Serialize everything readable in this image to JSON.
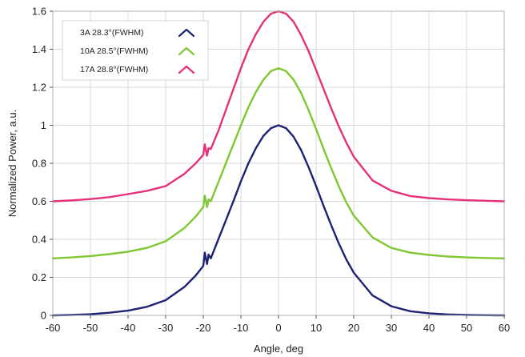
{
  "chart_data": {
    "type": "line",
    "xlabel": "Angle, deg",
    "ylabel": "Normalized Power, a.u.",
    "xlim": [
      -60,
      60
    ],
    "ylim": [
      0,
      1.6
    ],
    "x_ticks": [
      -60,
      -50,
      -40,
      -30,
      -20,
      -10,
      0,
      10,
      20,
      30,
      40,
      50,
      60
    ],
    "y_ticks": [
      0,
      0.2,
      0.4,
      0.6,
      0.8,
      1,
      1.2,
      1.4,
      1.6
    ],
    "x_tick_labels": [
      "-60",
      "-50",
      "-40",
      "-30",
      "-20",
      "-10",
      "0",
      "10",
      "20",
      "30",
      "40",
      "50",
      "60"
    ],
    "y_tick_labels": [
      "0",
      "0.2",
      "0.4",
      "0.6",
      "0.8",
      "1",
      "1.2",
      "1.4",
      "1.6"
    ],
    "grid": true,
    "legend_position": "top-left",
    "series": [
      {
        "name": "3A 28.3°(FWHM)",
        "color": "#1f2373",
        "x": [
          -60,
          -55,
          -50,
          -45,
          -40,
          -35,
          -30,
          -25,
          -22,
          -20,
          -19.6,
          -19,
          -18.6,
          -18,
          -16,
          -14,
          -12,
          -10,
          -8,
          -6,
          -4,
          -2,
          0,
          2,
          4,
          6,
          8,
          10,
          12,
          14,
          16,
          18,
          20,
          25,
          30,
          35,
          40,
          45,
          50,
          55,
          60
        ],
        "y": [
          0,
          0.002,
          0.006,
          0.014,
          0.025,
          0.045,
          0.08,
          0.15,
          0.21,
          0.26,
          0.33,
          0.27,
          0.32,
          0.3,
          0.4,
          0.5,
          0.6,
          0.705,
          0.8,
          0.88,
          0.945,
          0.985,
          1.0,
          0.985,
          0.94,
          0.87,
          0.78,
          0.68,
          0.575,
          0.475,
          0.38,
          0.295,
          0.225,
          0.105,
          0.048,
          0.022,
          0.011,
          0.005,
          0.002,
          0.001,
          0
        ]
      },
      {
        "name": "10A 28.5°(FWHM)",
        "color": "#7fc832",
        "x": [
          -60,
          -55,
          -50,
          -45,
          -40,
          -35,
          -30,
          -25,
          -22,
          -20,
          -19.6,
          -19,
          -18.6,
          -18,
          -16,
          -14,
          -12,
          -10,
          -8,
          -6,
          -4,
          -2,
          0,
          2,
          4,
          6,
          8,
          10,
          12,
          14,
          16,
          18,
          20,
          25,
          30,
          35,
          40,
          45,
          50,
          55,
          60
        ],
        "y": [
          0.3,
          0.305,
          0.312,
          0.322,
          0.335,
          0.355,
          0.39,
          0.46,
          0.52,
          0.57,
          0.63,
          0.57,
          0.61,
          0.6,
          0.7,
          0.8,
          0.9,
          1.0,
          1.095,
          1.175,
          1.24,
          1.285,
          1.3,
          1.285,
          1.24,
          1.17,
          1.08,
          0.98,
          0.875,
          0.775,
          0.68,
          0.595,
          0.525,
          0.41,
          0.355,
          0.33,
          0.318,
          0.31,
          0.305,
          0.302,
          0.3
        ]
      },
      {
        "name": "17A 28.8°(FWHM)",
        "color": "#e5317a",
        "x": [
          -60,
          -55,
          -50,
          -45,
          -40,
          -35,
          -30,
          -25,
          -22,
          -20,
          -19.6,
          -19,
          -18.6,
          -18,
          -16,
          -14,
          -12,
          -10,
          -8,
          -6,
          -4,
          -2,
          0,
          2,
          4,
          6,
          8,
          10,
          12,
          14,
          16,
          18,
          20,
          25,
          30,
          35,
          40,
          45,
          50,
          55,
          60
        ],
        "y": [
          0.6,
          0.605,
          0.612,
          0.622,
          0.638,
          0.655,
          0.68,
          0.745,
          0.8,
          0.845,
          0.9,
          0.84,
          0.88,
          0.875,
          0.97,
          1.08,
          1.19,
          1.3,
          1.4,
          1.48,
          1.545,
          1.587,
          1.6,
          1.587,
          1.545,
          1.475,
          1.39,
          1.29,
          1.19,
          1.09,
          0.995,
          0.91,
          0.835,
          0.71,
          0.655,
          0.628,
          0.617,
          0.61,
          0.606,
          0.603,
          0.6
        ]
      }
    ]
  }
}
